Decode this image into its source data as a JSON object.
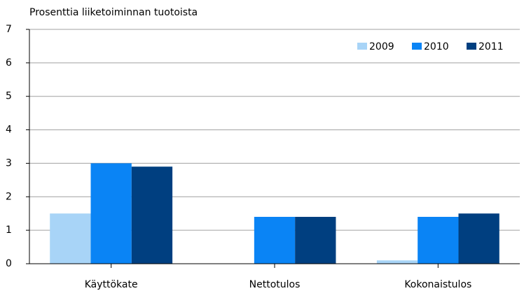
{
  "chart_data": {
    "type": "bar",
    "subtitle": "Prosenttia liiketoiminnan tuotoista",
    "categories": [
      "Käyttökate",
      "Nettotulos",
      "Kokonaistulos"
    ],
    "series": [
      {
        "name": "2009",
        "color": "#a8d4f7",
        "values": [
          1.5,
          0,
          0.1
        ]
      },
      {
        "name": "2010",
        "color": "#0a84f5",
        "values": [
          3.0,
          1.4,
          1.4
        ]
      },
      {
        "name": "2011",
        "color": "#003f80",
        "values": [
          2.9,
          1.4,
          1.5
        ]
      }
    ],
    "ylim": [
      0,
      7
    ],
    "yticks": [
      0,
      1,
      2,
      3,
      4,
      5,
      6,
      7
    ],
    "grid": true,
    "legend": "top-right"
  }
}
